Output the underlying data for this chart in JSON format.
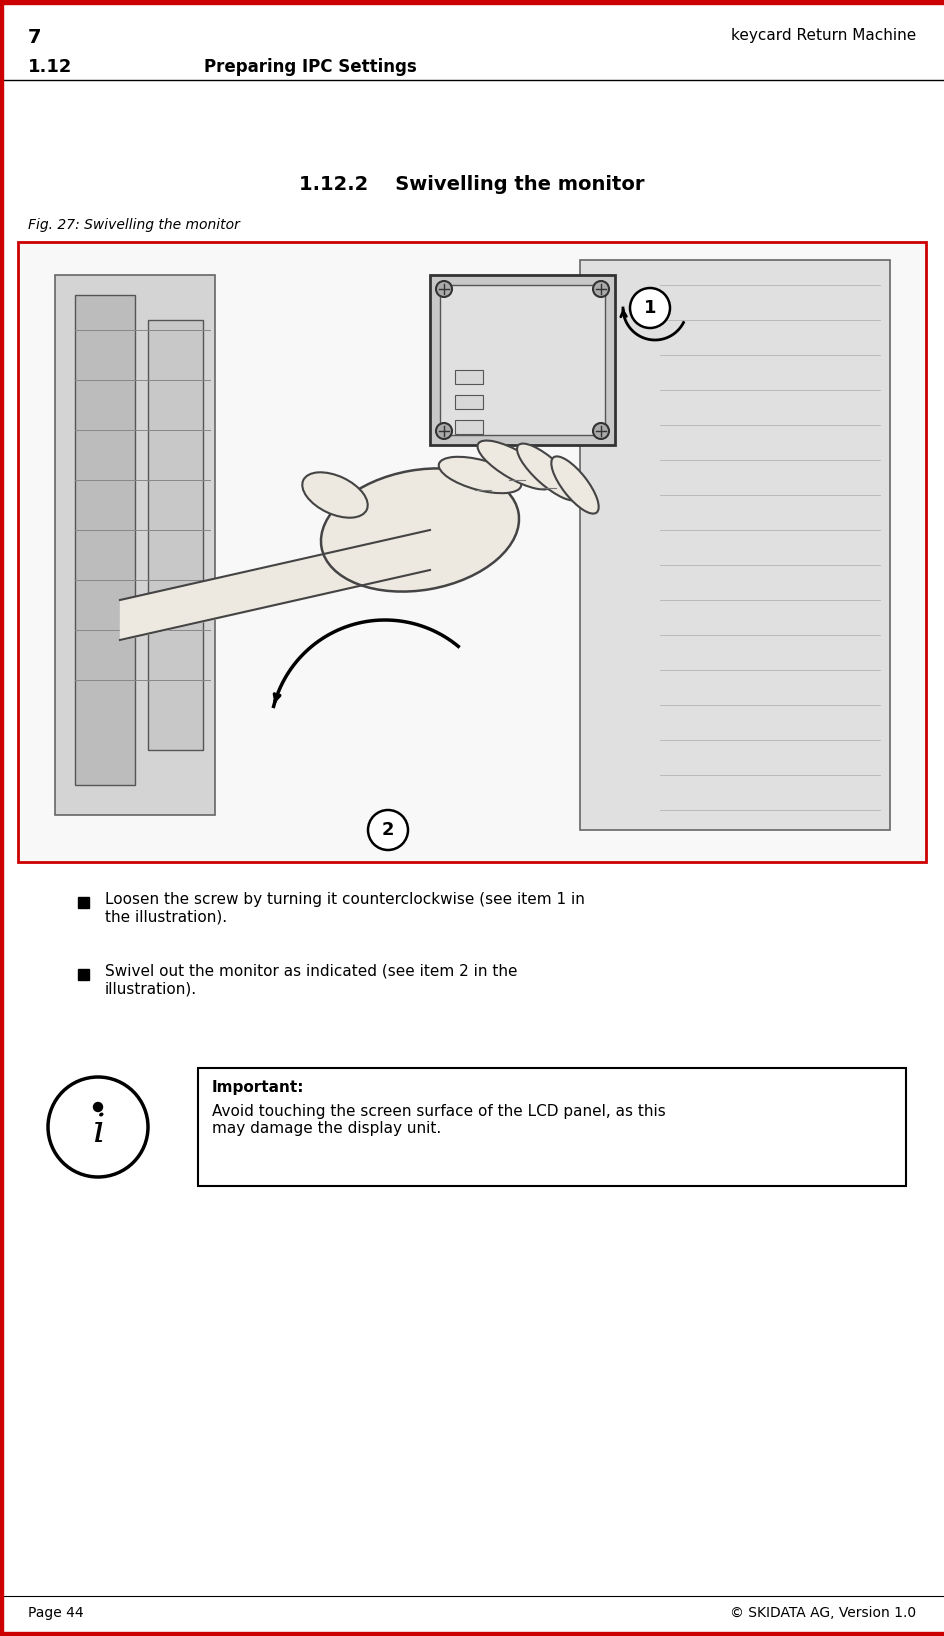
{
  "page_number": "7",
  "page_right_header": "keycard Return Machine",
  "section_number": "1.12",
  "section_title": "Preparing IPC Settings",
  "subsection_number": "1.12.2",
  "subsection_title": "Swivelling the monitor",
  "fig_caption": "Fig. 27: Swivelling the monitor",
  "bullet_points": [
    "Loosen the screw by turning it counterclockwise (see item 1 in\nthe illustration).",
    "Swivel out the monitor as indicated (see item 2 in the\nillustration)."
  ],
  "important_label": "Important:",
  "important_text": "Avoid touching the screen surface of the LCD panel, as this\nmay damage the display unit.",
  "footer_left": "Page 44",
  "footer_right": "© SKIDATA AG, Version 1.0",
  "top_border_color": "#cc0000",
  "bottom_border_color": "#cc0000",
  "image_border_color": "#cc0000",
  "bg_color": "#ffffff",
  "text_color": "#000000",
  "header_line_color": "#000000",
  "important_box_border": "#000000"
}
